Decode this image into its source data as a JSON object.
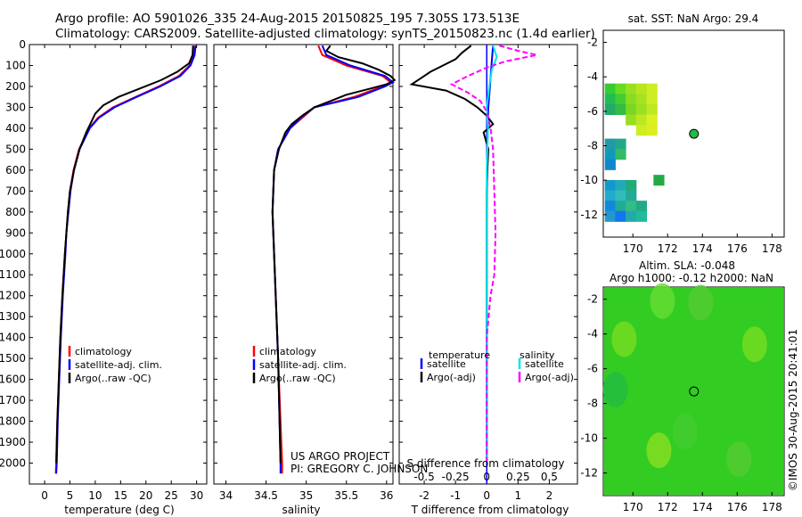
{
  "header": {
    "line1": "Argo profile: AO 5901026_335 24-Aug-2015 20150825_195 7.305S 173.513E",
    "line2": "Climatology: CARS2009. Satellite-adjusted climatology: synTS_20150823.nc (1.4d earlier)"
  },
  "colors": {
    "climatology": "#ff0000",
    "satellite": "#0000ff",
    "argo": "#000000",
    "salinity_satellite": "#00e5ee",
    "salinity_argo": "#ff00ff"
  },
  "depth_ticks": [
    "0",
    "100",
    "200",
    "300",
    "400",
    "500",
    "600",
    "700",
    "800",
    "900",
    "1000",
    "1100",
    "1200",
    "1300",
    "1400",
    "1500",
    "1600",
    "1700",
    "1800",
    "1900",
    "2000"
  ],
  "credit": {
    "line1": "US ARGO PROJECT",
    "line2": "PI: GREGORY C. JOHNSON",
    "stamp": "©IMOS 30-Aug-2015 20:41:01"
  },
  "chart_data": [
    {
      "type": "line",
      "xlabel": "temperature (deg C)",
      "xticks": [
        "0",
        "5",
        "10",
        "15",
        "20",
        "25",
        "30"
      ],
      "xlim": [
        -3,
        32
      ],
      "ylim": [
        2100,
        0
      ],
      "legend": {
        "placement": "lower-left",
        "entries": [
          "climatology",
          "satellite-adj. clim.",
          "Argo(..raw -QC)"
        ]
      },
      "series": [
        {
          "name": "climatology",
          "color": "#ff0000",
          "depth": [
            5,
            50,
            100,
            150,
            200,
            250,
            300,
            350,
            400,
            500,
            600,
            700,
            800,
            900,
            1000,
            1200,
            1400,
            1600,
            1800,
            2000,
            2050
          ],
          "values": [
            29.6,
            29.4,
            28.6,
            26.5,
            22.5,
            18.0,
            13.5,
            10.5,
            8.8,
            6.8,
            5.7,
            5.0,
            4.6,
            4.3,
            4.0,
            3.5,
            3.1,
            2.8,
            2.5,
            2.3,
            2.2
          ]
        },
        {
          "name": "satellite-adj. clim.",
          "color": "#0000ff",
          "depth": [
            5,
            50,
            100,
            150,
            200,
            250,
            300,
            350,
            400,
            500,
            600,
            700,
            800,
            900,
            1000,
            1200,
            1400,
            1600,
            1800,
            2000,
            2050
          ],
          "values": [
            29.8,
            29.6,
            28.8,
            26.8,
            22.8,
            18.2,
            13.8,
            10.7,
            8.9,
            6.9,
            5.8,
            5.1,
            4.7,
            4.3,
            4.1,
            3.6,
            3.2,
            2.9,
            2.6,
            2.4,
            2.3
          ]
        },
        {
          "name": "Argo(..raw -QC)",
          "color": "#000000",
          "depth": [
            5,
            50,
            90,
            130,
            170,
            210,
            250,
            290,
            330,
            370,
            420,
            500,
            600,
            700,
            800,
            900,
            1000,
            1200,
            1400,
            1600,
            1800,
            2000
          ],
          "values": [
            29.3,
            29.2,
            28.5,
            26.2,
            23.0,
            18.8,
            14.6,
            11.6,
            10.0,
            9.2,
            8.2,
            6.9,
            5.8,
            5.0,
            4.6,
            4.3,
            4.0,
            3.5,
            3.1,
            2.8,
            2.5,
            2.3
          ]
        }
      ]
    },
    {
      "type": "line",
      "xlabel": "salinity",
      "xticks": [
        "34",
        "34.5",
        "35",
        "35.5",
        "36"
      ],
      "xlim": [
        33.85,
        36.08
      ],
      "ylim": [
        2100,
        0
      ],
      "legend": {
        "placement": "lower-left",
        "entries": [
          "climatology",
          "satellite-adj. clim.",
          "Argo(..raw -QC)"
        ]
      },
      "series": [
        {
          "name": "climatology",
          "color": "#ff0000",
          "depth": [
            5,
            50,
            100,
            150,
            180,
            200,
            250,
            300,
            350,
            400,
            500,
            600,
            800,
            1000,
            1500,
            2000,
            2050
          ],
          "values": [
            35.15,
            35.2,
            35.5,
            35.95,
            36.05,
            35.95,
            35.6,
            35.1,
            34.95,
            34.8,
            34.65,
            34.6,
            34.58,
            34.6,
            34.65,
            34.7,
            34.7
          ]
        },
        {
          "name": "satellite-adj. clim.",
          "color": "#0000ff",
          "depth": [
            5,
            50,
            100,
            150,
            180,
            200,
            250,
            300,
            350,
            400,
            500,
            600,
            800,
            1000,
            1500,
            2000,
            2050
          ],
          "values": [
            35.2,
            35.25,
            35.55,
            35.98,
            36.08,
            35.98,
            35.65,
            35.1,
            34.93,
            34.8,
            34.65,
            34.6,
            34.58,
            34.6,
            34.65,
            34.68,
            34.68
          ]
        },
        {
          "name": "Argo(..raw -QC)",
          "color": "#000000",
          "depth": [
            5,
            30,
            60,
            90,
            120,
            150,
            170,
            190,
            210,
            240,
            270,
            300,
            340,
            380,
            420,
            500,
            600,
            800,
            1000,
            1500,
            2000
          ],
          "values": [
            35.3,
            35.25,
            35.4,
            35.7,
            35.9,
            36.05,
            36.1,
            36.0,
            35.8,
            35.5,
            35.3,
            35.1,
            34.95,
            34.82,
            34.74,
            34.66,
            34.6,
            34.58,
            34.6,
            34.65,
            34.68
          ]
        }
      ]
    },
    {
      "type": "line",
      "xlabel": "T difference from climatology",
      "xlabel_top": "S difference from climatology",
      "xticks": [
        "-2",
        "-1",
        "0",
        "1",
        "2"
      ],
      "xticks_top": [
        "-0.5",
        "-0.25",
        "0",
        "0.25",
        "0.5"
      ],
      "xlim": [
        -2.8,
        2.9
      ],
      "ylim": [
        2100,
        0
      ],
      "legend": {
        "placement": "lower-left",
        "temperature_title": "temperature",
        "salinity_title": "salinity",
        "entries": [
          "satellite",
          "Argo(-adj)",
          "satellite",
          "Argo(-adj)"
        ]
      },
      "series": [
        {
          "name": "satellite",
          "group": "temperature",
          "color": "#0000ff",
          "depth": [
            5,
            100,
            200,
            300,
            400,
            500,
            800,
            1200,
            1600,
            2000
          ],
          "values": [
            0.2,
            0.15,
            0.1,
            0.05,
            0.03,
            0.02,
            0.0,
            0.0,
            0.0,
            0.0
          ]
        },
        {
          "name": "Argo(-adj)",
          "group": "temperature",
          "color": "#000000",
          "depth": [
            5,
            40,
            70,
            100,
            130,
            160,
            190,
            220,
            260,
            300,
            340,
            380,
            420,
            500,
            600,
            700,
            800,
            1000,
            1500,
            2000
          ],
          "values": [
            -0.5,
            -0.8,
            -1.0,
            -1.4,
            -1.8,
            -2.1,
            -2.4,
            -1.3,
            -0.7,
            -0.3,
            0.0,
            0.2,
            -0.1,
            0.05,
            0.02,
            0.0,
            0.0,
            0.0,
            0.0,
            0.0
          ]
        },
        {
          "name": "satellite",
          "group": "salinity",
          "color": "#00e5ee",
          "depth": [
            5,
            60,
            120,
            200,
            300,
            400,
            600,
            1000,
            1500,
            2000
          ],
          "values": [
            0.05,
            0.08,
            0.04,
            0.02,
            0.0,
            0.01,
            0.0,
            0.0,
            0.0,
            0.0
          ]
        },
        {
          "name": "Argo(-adj)",
          "group": "salinity",
          "color": "#ff00ff",
          "depth": [
            5,
            30,
            50,
            80,
            110,
            150,
            190,
            230,
            270,
            320,
            400,
            500,
            700,
            900,
            1100,
            1200,
            1400,
            2000
          ],
          "values": [
            0.1,
            0.25,
            0.4,
            0.15,
            0.0,
            -0.15,
            -0.28,
            -0.15,
            -0.05,
            0.0,
            0.03,
            0.05,
            0.06,
            0.07,
            0.06,
            0.03,
            0.0,
            0.0
          ]
        }
      ]
    },
    {
      "type": "heatmap",
      "title": "sat. SST: NaN Argo: 29.4",
      "xticks": [
        "170",
        "172",
        "174",
        "176",
        "178"
      ],
      "yticks": [
        "-2",
        "-4",
        "-6",
        "-8",
        "-10",
        "-12"
      ],
      "xlim": [
        168.3,
        178.7
      ],
      "ylim": [
        -13.3,
        -1.3
      ],
      "argo_position": {
        "lon": 173.513,
        "lat": -7.305
      },
      "cells": [
        {
          "lon": 168.7,
          "lat": -4.7,
          "color": "#33cc33"
        },
        {
          "lon": 169.3,
          "lat": -4.7,
          "color": "#66dd22"
        },
        {
          "lon": 169.9,
          "lat": -4.7,
          "color": "#99e022"
        },
        {
          "lon": 170.5,
          "lat": -4.7,
          "color": "#b8e61e"
        },
        {
          "lon": 171.1,
          "lat": -4.7,
          "color": "#ccee22"
        },
        {
          "lon": 168.7,
          "lat": -5.3,
          "color": "#22bb55"
        },
        {
          "lon": 169.3,
          "lat": -5.3,
          "color": "#44cc33"
        },
        {
          "lon": 169.9,
          "lat": -5.3,
          "color": "#88dd22"
        },
        {
          "lon": 170.5,
          "lat": -5.3,
          "color": "#aae022"
        },
        {
          "lon": 171.1,
          "lat": -5.3,
          "color": "#ccee22"
        },
        {
          "lon": 168.7,
          "lat": -5.9,
          "color": "#22aa66"
        },
        {
          "lon": 169.3,
          "lat": -5.9,
          "color": "#33bb44"
        },
        {
          "lon": 169.9,
          "lat": -5.9,
          "color": "#77d822"
        },
        {
          "lon": 170.5,
          "lat": -5.9,
          "color": "#99e022"
        },
        {
          "lon": 171.1,
          "lat": -5.9,
          "color": "#bbe822"
        },
        {
          "lon": 169.9,
          "lat": -6.5,
          "color": "#99dd22"
        },
        {
          "lon": 170.5,
          "lat": -6.5,
          "color": "#bbe822"
        },
        {
          "lon": 171.1,
          "lat": -6.5,
          "color": "#ddf022"
        },
        {
          "lon": 170.5,
          "lat": -7.1,
          "color": "#ccee22"
        },
        {
          "lon": 171.1,
          "lat": -7.1,
          "color": "#ddee22"
        },
        {
          "lon": 168.7,
          "lat": -7.9,
          "color": "#2299aa"
        },
        {
          "lon": 169.3,
          "lat": -7.9,
          "color": "#22aa88"
        },
        {
          "lon": 168.7,
          "lat": -8.5,
          "color": "#1199bb"
        },
        {
          "lon": 169.3,
          "lat": -8.5,
          "color": "#33bb66"
        },
        {
          "lon": 168.7,
          "lat": -9.1,
          "color": "#1188cc"
        },
        {
          "lon": 168.7,
          "lat": -10.3,
          "color": "#1199cc"
        },
        {
          "lon": 169.3,
          "lat": -10.3,
          "color": "#22aabb"
        },
        {
          "lon": 169.9,
          "lat": -10.3,
          "color": "#22aa77"
        },
        {
          "lon": 168.7,
          "lat": -10.9,
          "color": "#22aacc"
        },
        {
          "lon": 169.3,
          "lat": -10.9,
          "color": "#33bbbb"
        },
        {
          "lon": 169.9,
          "lat": -10.9,
          "color": "#22aa99"
        },
        {
          "lon": 168.7,
          "lat": -11.5,
          "color": "#1188dd"
        },
        {
          "lon": 169.3,
          "lat": -11.5,
          "color": "#22aa99"
        },
        {
          "lon": 169.9,
          "lat": -11.5,
          "color": "#33bb88"
        },
        {
          "lon": 170.5,
          "lat": -11.5,
          "color": "#22aa88"
        },
        {
          "lon": 168.7,
          "lat": -12.1,
          "color": "#2299cc"
        },
        {
          "lon": 169.3,
          "lat": -12.1,
          "color": "#1177ee"
        },
        {
          "lon": 169.9,
          "lat": -12.1,
          "color": "#22aaaa"
        },
        {
          "lon": 170.5,
          "lat": -12.1,
          "color": "#22bb99"
        },
        {
          "lon": 171.5,
          "lat": -10.0,
          "color": "#22aa44"
        }
      ]
    },
    {
      "type": "heatmap",
      "title_line1": "Altim. SLA: -0.048",
      "title_line2": "Argo h1000: -0.12 h2000: NaN",
      "xticks": [
        "170",
        "172",
        "174",
        "176",
        "178"
      ],
      "yticks": [
        "-2",
        "-4",
        "-6",
        "-8",
        "-10",
        "-12"
      ],
      "xlim": [
        168.3,
        178.7
      ],
      "ylim": [
        -13.3,
        -1.3
      ],
      "argo_position": {
        "lon": 173.513,
        "lat": -7.305
      },
      "background_color": "#33cc22",
      "patches": [
        {
          "lon": 169.5,
          "lat": -4.3,
          "color": "#77dd22"
        },
        {
          "lon": 171.7,
          "lat": -2.1,
          "color": "#66dd33"
        },
        {
          "lon": 173.9,
          "lat": -2.2,
          "color": "#55cc33"
        },
        {
          "lon": 177.0,
          "lat": -4.6,
          "color": "#77dd22"
        },
        {
          "lon": 171.5,
          "lat": -10.7,
          "color": "#88e022"
        },
        {
          "lon": 173.0,
          "lat": -9.6,
          "color": "#44cc33"
        },
        {
          "lon": 176.1,
          "lat": -11.2,
          "color": "#55cc33"
        },
        {
          "lon": 169.0,
          "lat": -7.2,
          "color": "#22bb44"
        }
      ]
    }
  ]
}
